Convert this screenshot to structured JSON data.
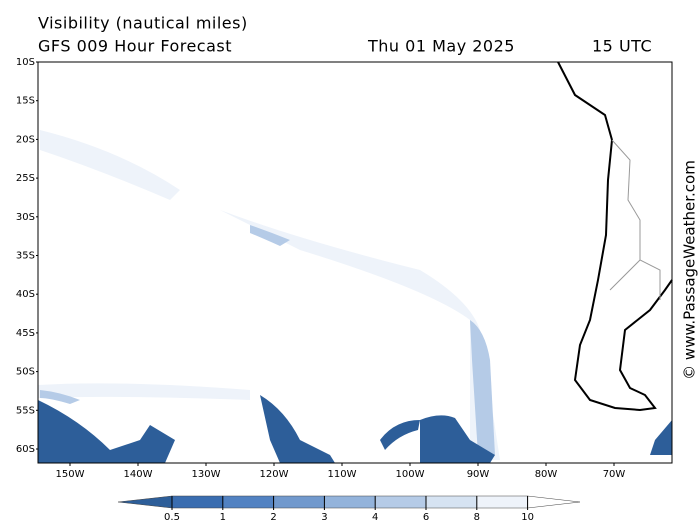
{
  "header": {
    "title": "Visibility (nautical miles)",
    "subtitle": "GFS 009 Hour Forecast",
    "date": "Thu 01 May 2025",
    "time": "15 UTC"
  },
  "map": {
    "lat_labels": [
      "10S",
      "15S",
      "20S",
      "25S",
      "30S",
      "35S",
      "40S",
      "45S",
      "50S",
      "55S",
      "60S"
    ],
    "lon_labels": [
      "150W",
      "140W",
      "130W",
      "120W",
      "110W",
      "100W",
      "90W",
      "80W",
      "70W"
    ]
  },
  "legend": {
    "levels": [
      0.5,
      1,
      2,
      3,
      4,
      6,
      8,
      10
    ],
    "colors": [
      "#2d5e99",
      "#3a6db0",
      "#5282c2",
      "#7199cd",
      "#93b3db",
      "#b5cbe7",
      "#d6e3f2",
      "#eef3fa",
      "#ffffff"
    ]
  },
  "watermark": "© www.PassageWeather.com"
}
